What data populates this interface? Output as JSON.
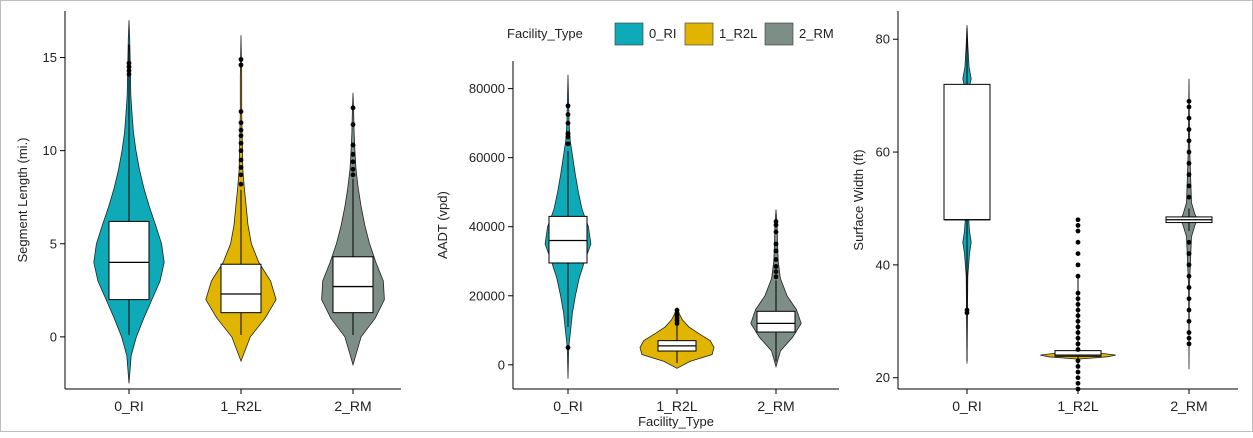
{
  "legend": {
    "title": "Facility_Type",
    "items": [
      {
        "label": "0_RI",
        "color": "#0FAAB8"
      },
      {
        "label": "1_R2L",
        "color": "#E1B400"
      },
      {
        "label": "2_RM",
        "color": "#7D8E86"
      }
    ]
  },
  "chart_data": [
    {
      "type": "violin",
      "categories": [
        "0_RI",
        "1_R2L",
        "2_RM"
      ],
      "xlabel": "",
      "ylabel": "Segment Length (mi.)",
      "ylim": [
        -2.8,
        17.5
      ],
      "yticks": [
        0,
        5,
        10,
        15
      ],
      "series": [
        {
          "name": "0_RI",
          "color": "#0FAAB8",
          "violin": [
            [
              -2.5,
              0
            ],
            [
              -1,
              0.06
            ],
            [
              0,
              0.2
            ],
            [
              1,
              0.4
            ],
            [
              2,
              0.62
            ],
            [
              3,
              0.84
            ],
            [
              4,
              0.95
            ],
            [
              5,
              0.88
            ],
            [
              6,
              0.72
            ],
            [
              7,
              0.55
            ],
            [
              8,
              0.4
            ],
            [
              9,
              0.28
            ],
            [
              10,
              0.19
            ],
            [
              11,
              0.12
            ],
            [
              12,
              0.08
            ],
            [
              13,
              0.05
            ],
            [
              14,
              0.04
            ],
            [
              15,
              0.03
            ],
            [
              16,
              0.02
            ],
            [
              17,
              0
            ]
          ],
          "box": {
            "q1": 2.0,
            "median": 4.0,
            "q3": 6.2,
            "lower": 0.1,
            "upper": 15.7
          },
          "outliers": [
            14.1,
            14.3,
            14.5,
            14.7
          ]
        },
        {
          "name": "1_R2L",
          "color": "#E1B400",
          "violin": [
            [
              -1.3,
              0
            ],
            [
              0,
              0.25
            ],
            [
              1,
              0.65
            ],
            [
              2,
              0.95
            ],
            [
              3,
              0.8
            ],
            [
              4,
              0.48
            ],
            [
              5,
              0.28
            ],
            [
              6,
              0.19
            ],
            [
              7,
              0.14
            ],
            [
              8,
              0.09
            ],
            [
              9,
              0.05
            ],
            [
              10,
              0.04
            ],
            [
              11,
              0.03
            ],
            [
              12,
              0.02
            ],
            [
              14,
              0.02
            ],
            [
              16.2,
              0
            ]
          ],
          "box": {
            "q1": 1.3,
            "median": 2.3,
            "q3": 3.9,
            "lower": 0.1,
            "upper": 7.9
          },
          "outliers": [
            8.2,
            8.7,
            9.1,
            9.5,
            10.0,
            10.4,
            10.8,
            11.1,
            11.5,
            12.1,
            14.6,
            14.9
          ]
        },
        {
          "name": "2_RM",
          "color": "#7D8E86",
          "violin": [
            [
              -1.5,
              0
            ],
            [
              0,
              0.22
            ],
            [
              1,
              0.6
            ],
            [
              2,
              0.85
            ],
            [
              3,
              0.82
            ],
            [
              4,
              0.62
            ],
            [
              5,
              0.45
            ],
            [
              6,
              0.32
            ],
            [
              7,
              0.22
            ],
            [
              8,
              0.14
            ],
            [
              9,
              0.08
            ],
            [
              10,
              0.05
            ],
            [
              11,
              0.03
            ],
            [
              12,
              0.02
            ],
            [
              13.1,
              0
            ]
          ],
          "box": {
            "q1": 1.3,
            "median": 2.7,
            "q3": 4.3,
            "lower": 0.1,
            "upper": 8.5
          },
          "outliers": [
            8.7,
            9.0,
            9.4,
            9.8,
            10.3,
            11.4,
            12.3
          ]
        }
      ]
    },
    {
      "type": "violin",
      "categories": [
        "0_RI",
        "1_R2L",
        "2_RM"
      ],
      "xlabel": "Facility_Type",
      "ylabel": "AADT (vpd)",
      "ylim": [
        -7000,
        88000
      ],
      "yticks": [
        0,
        20000,
        40000,
        60000,
        80000
      ],
      "series": [
        {
          "name": "0_RI",
          "color": "#0FAAB8",
          "violin": [
            [
              -4000,
              0
            ],
            [
              5000,
              0.02
            ],
            [
              10000,
              0.07
            ],
            [
              15000,
              0.12
            ],
            [
              20000,
              0.2
            ],
            [
              25000,
              0.3
            ],
            [
              30000,
              0.45
            ],
            [
              35000,
              0.62
            ],
            [
              40000,
              0.55
            ],
            [
              45000,
              0.38
            ],
            [
              50000,
              0.28
            ],
            [
              55000,
              0.2
            ],
            [
              60000,
              0.13
            ],
            [
              65000,
              0.06
            ],
            [
              70000,
              0.03
            ],
            [
              75000,
              0.02
            ],
            [
              84000,
              0
            ]
          ],
          "box": {
            "q1": 29500,
            "median": 36000,
            "q3": 43000,
            "lower": 11000,
            "upper": 62000
          },
          "outliers": [
            5000,
            64000,
            66000,
            67000,
            70000,
            72500,
            75000
          ]
        },
        {
          "name": "1_R2L",
          "color": "#E1B400",
          "violin": [
            [
              -1000,
              0
            ],
            [
              1000,
              0.35
            ],
            [
              3000,
              0.95
            ],
            [
              5000,
              1.0
            ],
            [
              7000,
              0.9
            ],
            [
              9000,
              0.6
            ],
            [
              11000,
              0.32
            ],
            [
              13000,
              0.15
            ],
            [
              15000,
              0.05
            ],
            [
              16500,
              0
            ]
          ],
          "box": {
            "q1": 4000,
            "median": 5500,
            "q3": 7000,
            "lower": 500,
            "upper": 11500
          },
          "outliers": [
            12000,
            12800,
            13500,
            14200,
            15000,
            15800
          ]
        },
        {
          "name": "2_RM",
          "color": "#7D8E86",
          "violin": [
            [
              -500,
              0
            ],
            [
              4000,
              0.12
            ],
            [
              8000,
              0.45
            ],
            [
              12000,
              0.68
            ],
            [
              16000,
              0.55
            ],
            [
              20000,
              0.3
            ],
            [
              25000,
              0.12
            ],
            [
              30000,
              0.06
            ],
            [
              35000,
              0.04
            ],
            [
              40000,
              0.03
            ],
            [
              45000,
              0
            ]
          ],
          "box": {
            "q1": 9500,
            "median": 12000,
            "q3": 15500,
            "lower": 1000,
            "upper": 24500
          },
          "outliers": [
            25500,
            27000,
            28500,
            30500,
            33000,
            35000,
            38500,
            40500,
            41500
          ]
        }
      ]
    },
    {
      "type": "violin",
      "categories": [
        "0_RI",
        "1_R2L",
        "2_RM"
      ],
      "xlabel": "",
      "ylabel": "Surface Width (ft)",
      "ylim": [
        18,
        85
      ],
      "yticks": [
        20,
        40,
        60,
        80
      ],
      "series": [
        {
          "name": "0_RI",
          "color": "#0FAAB8",
          "violin": [
            [
              22.5,
              0
            ],
            [
              30,
              0.01
            ],
            [
              38,
              0.02
            ],
            [
              42,
              0.06
            ],
            [
              44,
              0.1
            ],
            [
              46,
              0.06
            ],
            [
              48,
              0.04
            ],
            [
              55,
              0.03
            ],
            [
              65,
              0.03
            ],
            [
              71,
              0.04
            ],
            [
              73,
              0.1
            ],
            [
              75,
              0.05
            ],
            [
              79,
              0.02
            ],
            [
              82.5,
              0
            ]
          ],
          "box": {
            "q1": 48,
            "median": 48,
            "q3": 72,
            "lower": 23,
            "upper": 82
          },
          "outliers": [
            31.5,
            32
          ]
        },
        {
          "name": "1_R2L",
          "color": "#E1B400",
          "violin": [
            [
              23.3,
              0
            ],
            [
              23.7,
              0.7
            ],
            [
              24,
              0.9
            ],
            [
              24.3,
              0.6
            ],
            [
              24.7,
              0
            ]
          ],
          "box": {
            "q1": 23.8,
            "median": 24,
            "q3": 24.8,
            "lower": 22,
            "upper": 38
          },
          "outliers": [
            18,
            19,
            20,
            21,
            22,
            23,
            25,
            26,
            27,
            28,
            29,
            30,
            31,
            32,
            33,
            34,
            35,
            38,
            40,
            42,
            44,
            46,
            47,
            48
          ]
        },
        {
          "name": "2_RM",
          "color": "#7D8E86",
          "violin": [
            [
              21.5,
              0
            ],
            [
              36,
              0.01
            ],
            [
              45,
              0.06
            ],
            [
              47,
              0.14
            ],
            [
              48,
              0.2
            ],
            [
              49,
              0.14
            ],
            [
              51,
              0.06
            ],
            [
              60,
              0.02
            ],
            [
              73,
              0
            ]
          ],
          "box": {
            "q1": 47.5,
            "median": 48,
            "q3": 48.5,
            "lower": 46,
            "upper": 50
          },
          "outliers": [
            26,
            27,
            28,
            30,
            32,
            34,
            36,
            38,
            40,
            42,
            44,
            52,
            54,
            56,
            58,
            60,
            62,
            64,
            66,
            68,
            69
          ]
        }
      ]
    }
  ]
}
